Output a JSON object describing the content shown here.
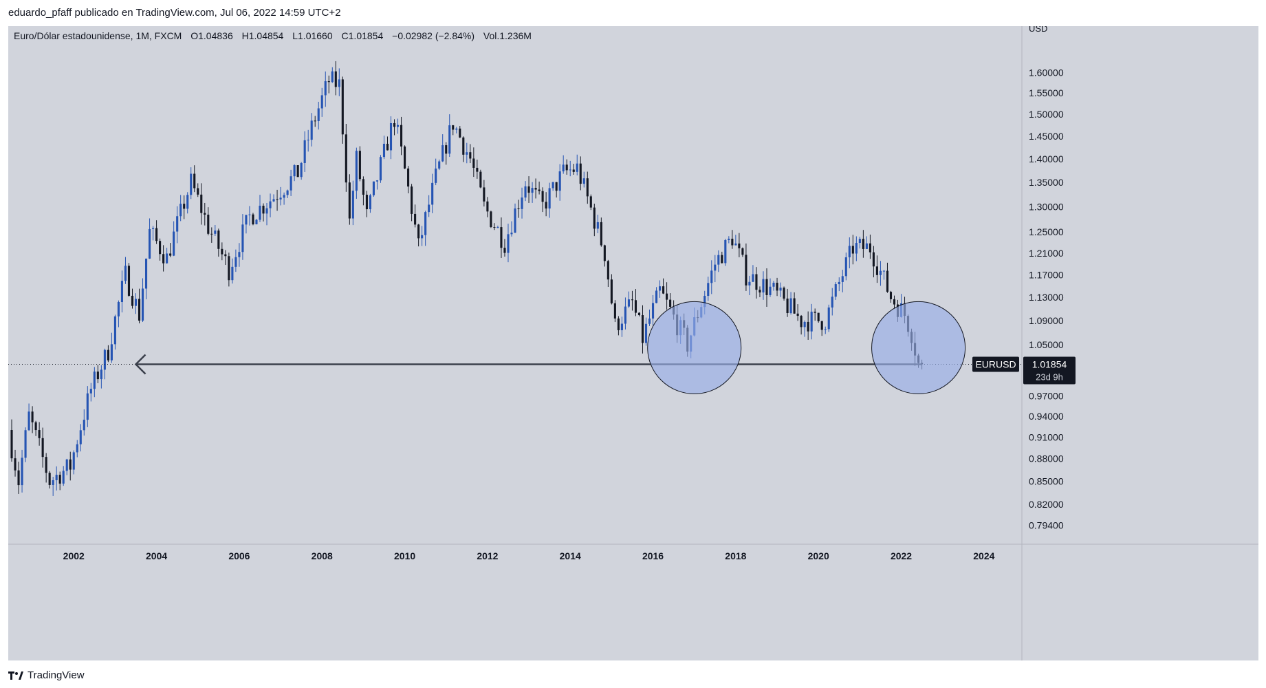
{
  "header": {
    "publisher_line": "eduardo_pfaff publicado en TradingView.com, Jul 06, 2022 14:59 UTC+2"
  },
  "legend": {
    "symbol": "Euro/Dólar estadounidense, 1M, FXCM",
    "open": "O1.04836",
    "high": "H1.04854",
    "low": "L1.01660",
    "close": "C1.01854",
    "change": "−0.02982 (−2.84%)",
    "volume": "Vol.1.236M"
  },
  "price_scale": {
    "currency": "USD",
    "last_label": "EURUSD",
    "last_price": "1.01854",
    "countdown": "23d 9h"
  },
  "footer": {
    "brand": "TradingView"
  },
  "colors": {
    "background": "#d1d4dc",
    "up_candle": "#2554b3",
    "down_candle": "#131722",
    "circle_fill": "#98aee6",
    "line": "#3a3f4b"
  },
  "chart_data": {
    "type": "candlestick",
    "title": "Euro/Dólar estadounidense, 1M, FXCM",
    "x_range": [
      "2000-06",
      "2024-12"
    ],
    "y_range": [
      0.78,
      1.63
    ],
    "y_scale": "log",
    "x_ticks": [
      "2002",
      "2004",
      "2006",
      "2008",
      "2010",
      "2012",
      "2014",
      "2016",
      "2018",
      "2020",
      "2022",
      "2024"
    ],
    "y_ticks": [
      "1.60000",
      "1.55000",
      "1.50000",
      "1.45000",
      "1.40000",
      "1.35000",
      "1.30000",
      "1.25000",
      "1.21000",
      "1.17000",
      "1.13000",
      "1.09000",
      "1.05000",
      "0.97000",
      "0.94000",
      "0.91000",
      "0.88000",
      "0.85000",
      "0.82000",
      "0.79400"
    ],
    "last_price": 1.01854,
    "anchors": [
      {
        "date": "2000-07",
        "price": 0.92
      },
      {
        "date": "2000-10",
        "price": 0.85
      },
      {
        "date": "2001-01",
        "price": 0.94
      },
      {
        "date": "2001-07",
        "price": 0.85
      },
      {
        "date": "2002-01",
        "price": 0.87
      },
      {
        "date": "2002-07",
        "price": 0.98
      },
      {
        "date": "2002-12",
        "price": 1.04
      },
      {
        "date": "2003-05",
        "price": 1.17
      },
      {
        "date": "2003-09",
        "price": 1.1
      },
      {
        "date": "2003-12",
        "price": 1.25
      },
      {
        "date": "2004-05",
        "price": 1.2
      },
      {
        "date": "2004-12",
        "price": 1.35
      },
      {
        "date": "2005-05",
        "price": 1.26
      },
      {
        "date": "2005-11",
        "price": 1.18
      },
      {
        "date": "2006-05",
        "price": 1.28
      },
      {
        "date": "2006-12",
        "price": 1.32
      },
      {
        "date": "2007-07",
        "price": 1.37
      },
      {
        "date": "2007-11",
        "price": 1.47
      },
      {
        "date": "2008-04",
        "price": 1.58
      },
      {
        "date": "2008-07",
        "price": 1.57
      },
      {
        "date": "2008-10",
        "price": 1.27
      },
      {
        "date": "2008-12",
        "price": 1.4
      },
      {
        "date": "2009-03",
        "price": 1.28
      },
      {
        "date": "2009-11",
        "price": 1.49
      },
      {
        "date": "2010-06",
        "price": 1.22
      },
      {
        "date": "2010-11",
        "price": 1.36
      },
      {
        "date": "2011-04",
        "price": 1.48
      },
      {
        "date": "2011-09",
        "price": 1.4
      },
      {
        "date": "2012-01",
        "price": 1.3
      },
      {
        "date": "2012-07",
        "price": 1.23
      },
      {
        "date": "2013-01",
        "price": 1.35
      },
      {
        "date": "2013-06",
        "price": 1.3
      },
      {
        "date": "2013-12",
        "price": 1.37
      },
      {
        "date": "2014-04",
        "price": 1.38
      },
      {
        "date": "2014-12",
        "price": 1.21
      },
      {
        "date": "2015-03",
        "price": 1.08
      },
      {
        "date": "2015-08",
        "price": 1.12
      },
      {
        "date": "2015-11",
        "price": 1.06
      },
      {
        "date": "2016-04",
        "price": 1.14
      },
      {
        "date": "2016-12",
        "price": 1.05
      },
      {
        "date": "2017-08",
        "price": 1.19
      },
      {
        "date": "2018-01",
        "price": 1.24
      },
      {
        "date": "2018-05",
        "price": 1.17
      },
      {
        "date": "2019-01",
        "price": 1.14
      },
      {
        "date": "2019-09",
        "price": 1.09
      },
      {
        "date": "2020-04",
        "price": 1.09
      },
      {
        "date": "2020-12",
        "price": 1.22
      },
      {
        "date": "2021-05",
        "price": 1.22
      },
      {
        "date": "2021-11",
        "price": 1.13
      },
      {
        "date": "2022-03",
        "price": 1.1
      },
      {
        "date": "2022-05",
        "price": 1.07
      },
      {
        "date": "2022-07",
        "price": 1.0185
      }
    ],
    "annotations": {
      "horizontal_arrow": {
        "price": 1.0185,
        "from": "2022-07",
        "to": "2003-07"
      },
      "circles": [
        {
          "date": "2017-01",
          "price": 1.045
        },
        {
          "date": "2022-06",
          "price": 1.045
        }
      ]
    }
  }
}
